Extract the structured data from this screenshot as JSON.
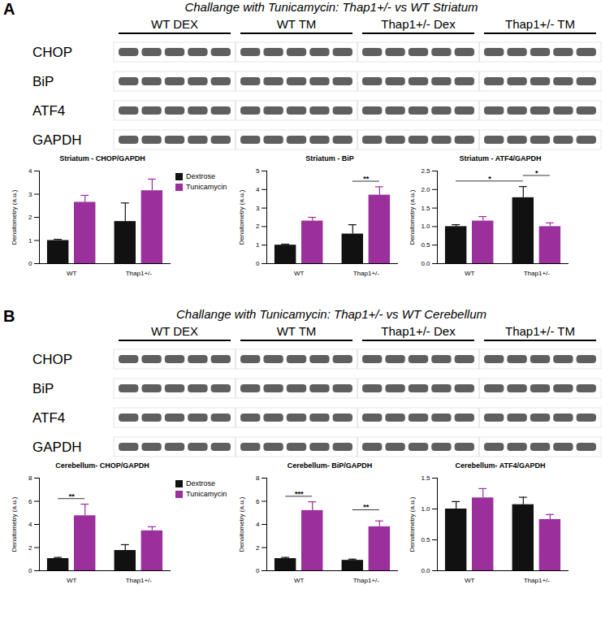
{
  "chart_data": [
    {
      "type": "bar",
      "title": "Striatum - CHOP/GAPDH",
      "categories": [
        "WT",
        "Thap1+/-"
      ],
      "series": [
        {
          "name": "Dextrose",
          "color": "#111111",
          "values": [
            1.0,
            1.82
          ],
          "errors": [
            0.05,
            0.8
          ]
        },
        {
          "name": "Tunicamycin",
          "color": "#9b2f9b",
          "values": [
            2.65,
            3.15
          ],
          "errors": [
            0.3,
            0.5
          ]
        }
      ],
      "y_label": "Densitometry (a.u.)",
      "ylim": [
        0,
        4
      ],
      "yticks": [
        0,
        1,
        2,
        3,
        4
      ],
      "legend": "right",
      "annotations": []
    },
    {
      "type": "bar",
      "title": "Striatum - BiP",
      "categories": [
        "WT",
        "Thap1+/-"
      ],
      "series": [
        {
          "name": "Dextrose",
          "color": "#111111",
          "values": [
            1.0,
            1.6
          ],
          "errors": [
            0.05,
            0.5
          ]
        },
        {
          "name": "Tunicamycin",
          "color": "#9b2f9b",
          "values": [
            2.3,
            3.7
          ],
          "errors": [
            0.2,
            0.45
          ]
        }
      ],
      "y_label": "Densitometry (a.u.)",
      "ylim": [
        0,
        5
      ],
      "yticks": [
        0,
        1,
        2,
        3,
        4,
        5
      ],
      "annotations": [
        {
          "from": {
            "category": "Thap1+/-",
            "series": "Dextrose"
          },
          "to": {
            "category": "Thap1+/-",
            "series": "Tunicamycin"
          },
          "label": "**"
        }
      ]
    },
    {
      "type": "bar",
      "title": "Striatum - ATF4/GAPDH",
      "categories": [
        "WT",
        "Thap1+/-"
      ],
      "series": [
        {
          "name": "Dextrose",
          "color": "#111111",
          "values": [
            1.0,
            1.78
          ],
          "errors": [
            0.05,
            0.3
          ]
        },
        {
          "name": "Tunicamycin",
          "color": "#9b2f9b",
          "values": [
            1.15,
            1.0
          ],
          "errors": [
            0.12,
            0.1
          ]
        }
      ],
      "y_label": "Densitometry (a.u.)",
      "ylim": [
        0,
        2.5
      ],
      "yticks": [
        {
          "value": 0,
          "label": "0.0"
        },
        {
          "value": 0.5,
          "label": "0.5"
        },
        {
          "value": 1,
          "label": "1.0"
        },
        {
          "value": 1.5,
          "label": "1.5"
        },
        {
          "value": 2,
          "label": "2.0"
        },
        {
          "value": 2.5,
          "label": "2.5"
        }
      ],
      "annotations": [
        {
          "from": {
            "category": "WT",
            "series": "Dextrose"
          },
          "to": {
            "category": "Thap1+/-",
            "series": "Dextrose"
          },
          "label": "*"
        },
        {
          "from": {
            "category": "Thap1+/-",
            "series": "Dextrose"
          },
          "to": {
            "category": "Thap1+/-",
            "series": "Tunicamycin"
          },
          "label": "*"
        }
      ]
    },
    {
      "type": "bar",
      "title": "Cerebellum- CHOP/GAPDH",
      "categories": [
        "WT",
        "Thap1+/-"
      ],
      "series": [
        {
          "name": "Dextrose",
          "color": "#111111",
          "values": [
            1.05,
            1.75
          ],
          "errors": [
            0.1,
            0.5
          ]
        },
        {
          "name": "Tunicamycin",
          "color": "#9b2f9b",
          "values": [
            4.75,
            3.45
          ],
          "errors": [
            1.0,
            0.35
          ]
        }
      ],
      "y_label": "Densitometry (a.u.)",
      "ylim": [
        0,
        8
      ],
      "yticks": [
        0,
        2,
        4,
        6,
        8
      ],
      "legend": "right",
      "annotations": [
        {
          "from": {
            "category": "WT",
            "series": "Dextrose"
          },
          "to": {
            "category": "WT",
            "series": "Tunicamycin"
          },
          "label": "**"
        }
      ]
    },
    {
      "type": "bar",
      "title": "Cerebellum- BiP/GAPDH",
      "categories": [
        "WT",
        "Thap1+/-"
      ],
      "series": [
        {
          "name": "Dextrose",
          "color": "#111111",
          "values": [
            1.05,
            0.9
          ],
          "errors": [
            0.1,
            0.1
          ]
        },
        {
          "name": "Tunicamycin",
          "color": "#9b2f9b",
          "values": [
            5.2,
            3.8
          ],
          "errors": [
            0.75,
            0.5
          ]
        }
      ],
      "y_label": "Densitometry (a.u.)",
      "ylim": [
        0,
        8
      ],
      "yticks": [
        0,
        2,
        4,
        6,
        8
      ],
      "annotations": [
        {
          "from": {
            "category": "WT",
            "series": "Dextrose"
          },
          "to": {
            "category": "WT",
            "series": "Tunicamycin"
          },
          "label": "***"
        },
        {
          "from": {
            "category": "Thap1+/-",
            "series": "Dextrose"
          },
          "to": {
            "category": "Thap1+/-",
            "series": "Tunicamycin"
          },
          "label": "**"
        }
      ]
    },
    {
      "type": "bar",
      "title": "Cerebellum- ATF4/GAPDH",
      "categories": [
        "WT",
        "Thap1+/-"
      ],
      "series": [
        {
          "name": "Dextrose",
          "color": "#111111",
          "values": [
            1.0,
            1.07
          ],
          "errors": [
            0.12,
            0.12
          ]
        },
        {
          "name": "Tunicamycin",
          "color": "#9b2f9b",
          "values": [
            1.18,
            0.83
          ],
          "errors": [
            0.15,
            0.08
          ]
        }
      ],
      "y_label": "Densitometry (a.u.)",
      "ylim": [
        0,
        1.5
      ],
      "yticks": [
        {
          "value": 0,
          "label": "0.0"
        },
        {
          "value": 0.5,
          "label": "0.5"
        },
        {
          "value": 1,
          "label": "1.0"
        },
        {
          "value": 1.5,
          "label": "1.5"
        }
      ],
      "annotations": []
    }
  ],
  "figure": {
    "panels": [
      {
        "letter": "A",
        "title": "Challange with Tunicamycin: Thap1+/- vs WT Striatum",
        "groups": [
          {
            "label": "WT DEX",
            "lanes": 5
          },
          {
            "label": "WT TM",
            "lanes": 5
          },
          {
            "label": "Thap1+/- Dex",
            "lanes": 5
          },
          {
            "label": "Thap1+/- TM",
            "lanes": 5
          }
        ],
        "proteins": [
          "CHOP",
          "BiP",
          "ATF4",
          "GAPDH"
        ]
      },
      {
        "letter": "B",
        "title": "Challange with Tunicamycin: Thap1+/- vs WT Cerebellum",
        "groups": [
          {
            "label": "WT DEX",
            "lanes": 5
          },
          {
            "label": "WT TM",
            "lanes": 5
          },
          {
            "label": "Thap1+/- Dex",
            "lanes": 5
          },
          {
            "label": "Thap1+/- TM",
            "lanes": 5
          }
        ],
        "proteins": [
          "CHOP",
          "BiP",
          "ATF4",
          "GAPDH"
        ]
      }
    ]
  }
}
